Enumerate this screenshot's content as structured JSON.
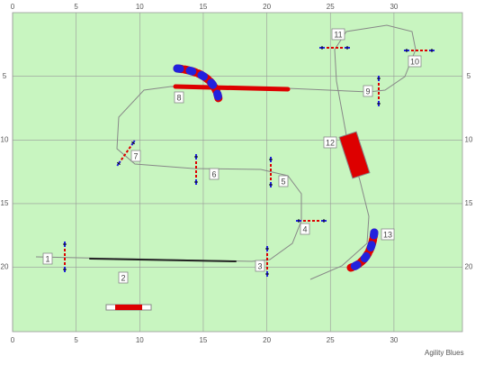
{
  "axes": {
    "xticks": [
      0,
      5,
      10,
      15,
      20,
      25,
      30
    ],
    "yticks": [
      5,
      10,
      15,
      20
    ]
  },
  "obstacles": [
    "1",
    "2",
    "3",
    "4",
    "5",
    "6",
    "7",
    "8",
    "9",
    "10",
    "11",
    "12",
    "13"
  ],
  "footer": "Agility Blues"
}
